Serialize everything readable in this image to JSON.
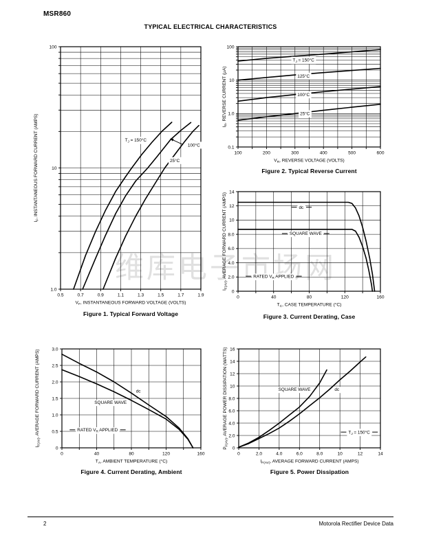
{
  "page": {
    "device": "MSR860",
    "section_title": "TYPICAL ELECTRICAL CHARACTERISTICS",
    "watermark": "维库电子市场网",
    "footer": {
      "page_number": "2",
      "right_text": "Motorola Rectifier Device Data"
    }
  },
  "chart_data": [
    {
      "type": "line",
      "title": "Figure 1. Typical Forward Voltage",
      "xlabel": "V~F~, INSTANTANEOUS FORWARD VOLTAGE (VOLTS)",
      "ylabel": "I~F~, INSTANTANEOUS FORWARD CURRENT (AMPS)",
      "x_scale": "linear",
      "y_scale": "log",
      "xlim": [
        0.5,
        1.9
      ],
      "ylim": [
        1,
        100
      ],
      "x_grid_step": 0.2,
      "grid": true,
      "legend": "inline-labels",
      "x_ticks": [
        {
          "v": 0.5,
          "label": "0.5"
        },
        {
          "v": 0.7,
          "label": "0.7"
        },
        {
          "v": 0.9,
          "label": "0.9"
        },
        {
          "v": 1.1,
          "label": "1.1"
        },
        {
          "v": 1.3,
          "label": "1.3"
        },
        {
          "v": 1.5,
          "label": "1.5"
        },
        {
          "v": 1.7,
          "label": "1.7"
        },
        {
          "v": 1.9,
          "label": "1.9"
        }
      ],
      "y_ticks": [
        {
          "v": 1,
          "label": "1.0"
        },
        {
          "v": 10,
          "label": "10"
        },
        {
          "v": 100,
          "label": "100"
        }
      ],
      "series": [
        {
          "name": "TJ = 150°C",
          "points": [
            [
              0.63,
              1.0
            ],
            [
              0.75,
              1.9
            ],
            [
              0.85,
              3.0
            ],
            [
              0.95,
              4.5
            ],
            [
              1.05,
              6.4
            ],
            [
              1.15,
              8.5
            ],
            [
              1.21,
              10
            ],
            [
              1.31,
              12.9
            ],
            [
              1.41,
              16.2
            ],
            [
              1.51,
              20
            ],
            [
              1.61,
              23.8
            ]
          ]
        },
        {
          "name": "100°C",
          "points": [
            [
              0.72,
              1.0
            ],
            [
              0.85,
              1.8
            ],
            [
              0.95,
              2.8
            ],
            [
              1.05,
              4.2
            ],
            [
              1.15,
              5.9
            ],
            [
              1.25,
              7.8
            ],
            [
              1.37,
              10
            ],
            [
              1.47,
              12.6
            ],
            [
              1.6,
              17.2
            ],
            [
              1.7,
              20.4
            ],
            [
              1.8,
              23.7
            ]
          ]
        },
        {
          "name": "25°C",
          "points": [
            [
              0.925,
              1.0
            ],
            [
              1.05,
              1.8
            ],
            [
              1.15,
              2.75
            ],
            [
              1.25,
              4.0
            ],
            [
              1.35,
              5.6
            ],
            [
              1.45,
              7.6
            ],
            [
              1.54,
              10
            ],
            [
              1.64,
              12.9
            ],
            [
              1.74,
              16.6
            ],
            [
              1.82,
              20
            ],
            [
              1.88,
              22.4
            ]
          ]
        }
      ],
      "labels": [
        {
          "text": "T~J~ = 150°C",
          "x": 1.25,
          "y": 16.5
        },
        {
          "text": "100°C",
          "x": 1.83,
          "y": 15.0
        },
        {
          "text": "25°C",
          "x": 1.64,
          "y": 11.2
        }
      ],
      "arrows": [
        {
          "x1": 1.72,
          "y1": 15.6,
          "x2": 1.595,
          "y2": 17.4
        }
      ]
    },
    {
      "type": "line",
      "title": "Figure 2. Typical Reverse Current",
      "xlabel": "V~R~, REVERSE VOLTAGE (VOLTS)",
      "ylabel": "I~R~, REVERSE CURRENT (μA)",
      "x_scale": "linear",
      "y_scale": "log",
      "xlim": [
        100,
        600
      ],
      "ylim": [
        0.1,
        100
      ],
      "x_grid_step": 50,
      "grid": true,
      "legend": "inline-labels",
      "x_ticks": [
        {
          "v": 100,
          "label": "100"
        },
        {
          "v": 200,
          "label": "200"
        },
        {
          "v": 300,
          "label": "300"
        },
        {
          "v": 400,
          "label": "400"
        },
        {
          "v": 500,
          "label": "500"
        },
        {
          "v": 600,
          "label": "600"
        }
      ],
      "y_ticks": [
        {
          "v": 0.1,
          "label": "0.1"
        },
        {
          "v": 1,
          "label": "1.0"
        },
        {
          "v": 10,
          "label": "10"
        },
        {
          "v": 100,
          "label": "100"
        }
      ],
      "series": [
        {
          "name": "TJ = 150°C",
          "points": [
            [
              100,
              37
            ],
            [
              200,
              45
            ],
            [
              300,
              52
            ],
            [
              400,
              60
            ],
            [
              500,
              70
            ],
            [
              600,
              82
            ]
          ]
        },
        {
          "name": "125°C",
          "points": [
            [
              100,
              10
            ],
            [
              200,
              12
            ],
            [
              300,
              14.3
            ],
            [
              400,
              16.8
            ],
            [
              500,
              19.5
            ],
            [
              600,
              22.5
            ]
          ]
        },
        {
          "name": "100°C",
          "points": [
            [
              100,
              2.35
            ],
            [
              200,
              3.0
            ],
            [
              300,
              3.7
            ],
            [
              400,
              4.5
            ],
            [
              500,
              5.4
            ],
            [
              600,
              6.4
            ]
          ]
        },
        {
          "name": "25°C",
          "points": [
            [
              100,
              0.63
            ],
            [
              200,
              0.8
            ],
            [
              300,
              1.0
            ],
            [
              400,
              1.25
            ],
            [
              500,
              1.55
            ],
            [
              600,
              1.9
            ]
          ]
        }
      ],
      "labels": [
        {
          "text": "T~J~ = 150°C",
          "x": 330,
          "y": 36
        },
        {
          "text": "125°C",
          "x": 330,
          "y": 12
        },
        {
          "text": "100°C",
          "x": 330,
          "y": 3.3
        },
        {
          "text": "25°C",
          "x": 335,
          "y": 0.9
        }
      ],
      "arrows": []
    },
    {
      "type": "line",
      "title": "Figure 3. Current Derating, Case",
      "xlabel": "T~C~, CASE TEMPERATURE (°C)",
      "ylabel": "I~F(AV)~, AVERAGE FORWARD CURRENT (AMPS)",
      "x_scale": "linear",
      "y_scale": "linear",
      "xlim": [
        0,
        160
      ],
      "ylim": [
        0,
        14
      ],
      "x_grid_step": 20,
      "y_grid_step": 2,
      "grid": true,
      "legend": "inline-labels",
      "x_ticks": [
        {
          "v": 0,
          "label": "0"
        },
        {
          "v": 40,
          "label": "40"
        },
        {
          "v": 80,
          "label": "80"
        },
        {
          "v": 120,
          "label": "120"
        },
        {
          "v": 160,
          "label": "160"
        }
      ],
      "y_ticks": [
        {
          "v": 0,
          "label": "0"
        },
        {
          "v": 2,
          "label": "2.0"
        },
        {
          "v": 4,
          "label": "4.0"
        },
        {
          "v": 6,
          "label": "6.0"
        },
        {
          "v": 8,
          "label": "8.0"
        },
        {
          "v": 10,
          "label": "10"
        },
        {
          "v": 12,
          "label": "12"
        },
        {
          "v": 14,
          "label": "14"
        }
      ],
      "series": [
        {
          "name": "dc",
          "points": [
            [
              0,
              12.5
            ],
            [
              124,
              12.5
            ],
            [
              128,
              12.35
            ],
            [
              132,
              11.7
            ],
            [
              136,
              10.6
            ],
            [
              140,
              9.0
            ],
            [
              144,
              7.0
            ],
            [
              148,
              4.6
            ],
            [
              151,
              2.4
            ],
            [
              153.5,
              0
            ]
          ]
        },
        {
          "name": "SQUARE WAVE",
          "points": [
            [
              0,
              8.7
            ],
            [
              128,
              8.7
            ],
            [
              132,
              8.45
            ],
            [
              136,
              7.6
            ],
            [
              140,
              6.3
            ],
            [
              144,
              4.6
            ],
            [
              147,
              2.9
            ],
            [
              150,
              0.9
            ],
            [
              151,
              0
            ]
          ]
        }
      ],
      "labels": [
        {
          "text": "dc",
          "x": 71,
          "y": 11.6,
          "dash": true
        },
        {
          "text": "SQUARE WAVE",
          "x": 76,
          "y": 7.9,
          "dash": true
        },
        {
          "text": "RATED V~R~ APPLIED",
          "x": 40,
          "y": 1.9,
          "dash": true
        }
      ],
      "arrows": []
    },
    {
      "type": "line",
      "title": "Figure 4. Current Derating, Ambient",
      "xlabel": "T~A~, AMBIENT TEMPERATURE (°C)",
      "ylabel": "I~F(AV)~, AVERAGE FORWARD CURRENT (AMPS)",
      "x_scale": "linear",
      "y_scale": "linear",
      "xlim": [
        0,
        160
      ],
      "ylim": [
        0,
        3
      ],
      "x_grid_step": 20,
      "y_grid_step": 0.5,
      "grid": true,
      "legend": "inline-labels",
      "x_ticks": [
        {
          "v": 0,
          "label": "0"
        },
        {
          "v": 40,
          "label": "40"
        },
        {
          "v": 80,
          "label": "80"
        },
        {
          "v": 120,
          "label": "120"
        },
        {
          "v": 160,
          "label": "160"
        }
      ],
      "y_ticks": [
        {
          "v": 0,
          "label": "0"
        },
        {
          "v": 0.5,
          "label": "0.5"
        },
        {
          "v": 1,
          "label": "1.0"
        },
        {
          "v": 1.5,
          "label": "1.5"
        },
        {
          "v": 2,
          "label": "2.0"
        },
        {
          "v": 2.5,
          "label": "2.5"
        },
        {
          "v": 3,
          "label": "3.0"
        }
      ],
      "series": [
        {
          "name": "dc",
          "points": [
            [
              0,
              2.84
            ],
            [
              20,
              2.56
            ],
            [
              40,
              2.3
            ],
            [
              60,
              2.0
            ],
            [
              80,
              1.66
            ],
            [
              100,
              1.3
            ],
            [
              120,
              0.95
            ],
            [
              135,
              0.6
            ],
            [
              145,
              0.28
            ],
            [
              151,
              0
            ]
          ]
        },
        {
          "name": "SQUARE WAVE",
          "points": [
            [
              0,
              2.37
            ],
            [
              20,
              2.16
            ],
            [
              40,
              1.94
            ],
            [
              60,
              1.7
            ],
            [
              80,
              1.44
            ],
            [
              100,
              1.16
            ],
            [
              120,
              0.87
            ],
            [
              135,
              0.56
            ],
            [
              145,
              0.26
            ],
            [
              151,
              0
            ]
          ]
        }
      ],
      "labels": [
        {
          "text": "dc",
          "x": 88,
          "y": 1.68
        },
        {
          "text": "SQUARE WAVE",
          "x": 56,
          "y": 1.33
        },
        {
          "text": "RATED V~R~ APPLIED",
          "x": 41,
          "y": 0.5,
          "dash": true
        }
      ],
      "arrows": []
    },
    {
      "type": "line",
      "title": "Figure 5. Power Dissipation",
      "xlabel": "I~F(AV)~, AVERAGE FORWARD CURRENT (AMPS)",
      "ylabel": "P~F(AV)~, AVERAGE POWER DISSIPATION (WATTS)",
      "x_scale": "linear",
      "y_scale": "linear",
      "xlim": [
        0,
        14
      ],
      "ylim": [
        0,
        16
      ],
      "x_grid_step": 2,
      "y_grid_step": 2,
      "grid": true,
      "legend": "inline-labels",
      "x_ticks": [
        {
          "v": 0,
          "label": "0"
        },
        {
          "v": 2,
          "label": "2.0"
        },
        {
          "v": 4,
          "label": "4.0"
        },
        {
          "v": 6,
          "label": "6.0"
        },
        {
          "v": 8,
          "label": "8.0"
        },
        {
          "v": 10,
          "label": "10"
        },
        {
          "v": 12,
          "label": "12"
        },
        {
          "v": 14,
          "label": "14"
        }
      ],
      "y_ticks": [
        {
          "v": 0,
          "label": "0"
        },
        {
          "v": 2,
          "label": "2.0"
        },
        {
          "v": 4,
          "label": "4.0"
        },
        {
          "v": 6,
          "label": "6.0"
        },
        {
          "v": 8,
          "label": "8.0"
        },
        {
          "v": 10,
          "label": "10"
        },
        {
          "v": 12,
          "label": "12"
        },
        {
          "v": 14,
          "label": "14"
        },
        {
          "v": 16,
          "label": "16"
        }
      ],
      "series": [
        {
          "name": "SQUARE WAVE",
          "points": [
            [
              0,
              0.1
            ],
            [
              1,
              0.8
            ],
            [
              2,
              1.7
            ],
            [
              3,
              2.8
            ],
            [
              4,
              4.0
            ],
            [
              5,
              5.3
            ],
            [
              6,
              6.6
            ],
            [
              7,
              8.3
            ],
            [
              8,
              10.5
            ],
            [
              8.7,
              12.6
            ]
          ]
        },
        {
          "name": "dc",
          "points": [
            [
              0,
              0.1
            ],
            [
              1,
              0.7
            ],
            [
              2,
              1.5
            ],
            [
              3,
              2.3
            ],
            [
              4,
              3.2
            ],
            [
              5,
              4.3
            ],
            [
              6,
              5.5
            ],
            [
              7,
              6.8
            ],
            [
              8,
              8.1
            ],
            [
              9,
              9.5
            ],
            [
              10,
              11.0
            ],
            [
              11,
              12.4
            ],
            [
              12,
              13.9
            ],
            [
              12.55,
              14.7
            ]
          ]
        }
      ],
      "labels": [
        {
          "text": "SQUARE WAVE",
          "x": 5.5,
          "y": 9.2
        },
        {
          "text": "dc",
          "x": 9.7,
          "y": 9.2
        },
        {
          "text": "T~J~ = 150°C",
          "x": 11.9,
          "y": 2.3,
          "dash": true
        }
      ],
      "arrows": []
    }
  ]
}
